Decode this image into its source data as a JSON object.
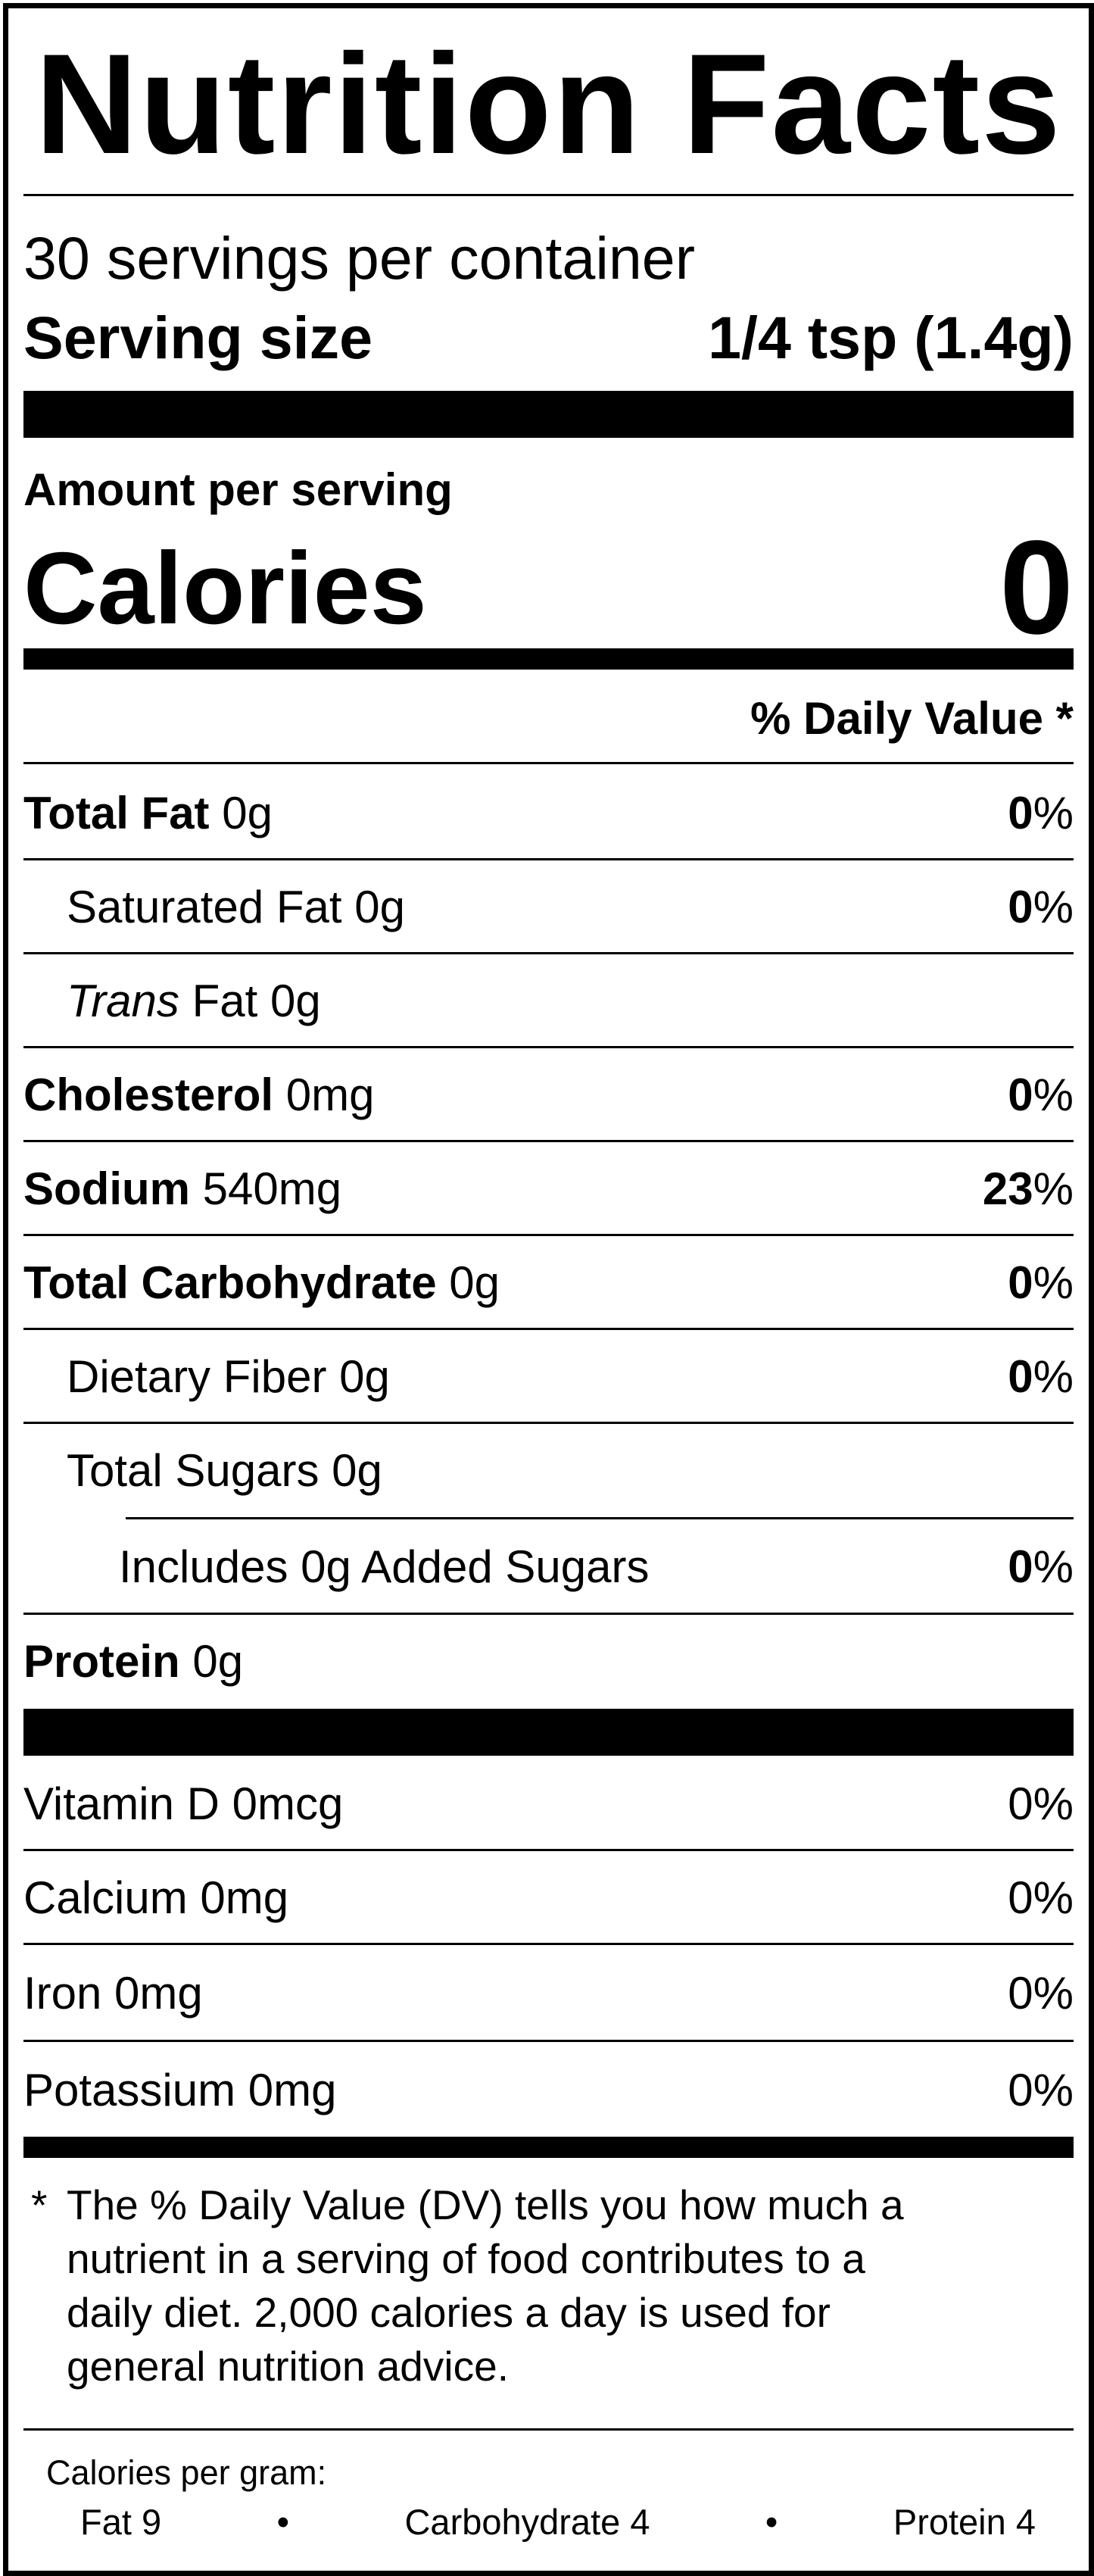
{
  "title": "Nutrition Facts",
  "servings_per_container": "30 servings per container",
  "serving_size_label": "Serving size",
  "serving_size_value": "1/4 tsp (1.4g)",
  "amount_per_serving": "Amount per serving",
  "calories_label": "Calories",
  "calories_value": "0",
  "daily_value_header": "% Daily Value *",
  "nutrients": {
    "total_fat": {
      "name": "Total Fat",
      "amount": "0g",
      "dv_num": "0",
      "dv_sign": "%"
    },
    "saturated_fat": {
      "name": "Saturated Fat 0g",
      "dv_num": "0",
      "dv_sign": "%"
    },
    "trans_fat": {
      "name_italic": "Trans",
      "name_rest": "Fat 0g"
    },
    "cholesterol": {
      "name": "Cholesterol",
      "amount": "0mg",
      "dv_num": "0",
      "dv_sign": "%"
    },
    "sodium": {
      "name": "Sodium",
      "amount": "540mg",
      "dv_num": "23",
      "dv_sign": "%"
    },
    "total_carbohydrate": {
      "name": "Total Carbohydrate",
      "amount": "0g",
      "dv_num": "0",
      "dv_sign": "%"
    },
    "dietary_fiber": {
      "name": "Dietary Fiber 0g",
      "dv_num": "0",
      "dv_sign": "%"
    },
    "total_sugars": {
      "name": "Total Sugars 0g"
    },
    "added_sugars": {
      "name": "Includes 0g Added Sugars",
      "dv_num": "0",
      "dv_sign": "%"
    },
    "protein": {
      "name": "Protein",
      "amount": "0g"
    }
  },
  "vitamins": {
    "vitamin_d": {
      "name": "Vitamin D 0mcg",
      "dv": "0%"
    },
    "calcium": {
      "name": "Calcium 0mg",
      "dv": "0%"
    },
    "iron": {
      "name": "Iron 0mg",
      "dv": "0%"
    },
    "potassium": {
      "name": "Potassium 0mg",
      "dv": "0%"
    }
  },
  "footnote": {
    "star": "*",
    "text": "The % Daily Value (DV) tells you how much a\nnutrient in a serving of food contributes to a\ndaily diet. 2,000 calories a day is used for\ngeneral nutrition advice."
  },
  "calories_per_gram": {
    "label": "Calories per gram:",
    "fat": "Fat 9",
    "bullet": "•",
    "carbohydrate": "Carbohydrate 4",
    "protein": "Protein 4"
  }
}
